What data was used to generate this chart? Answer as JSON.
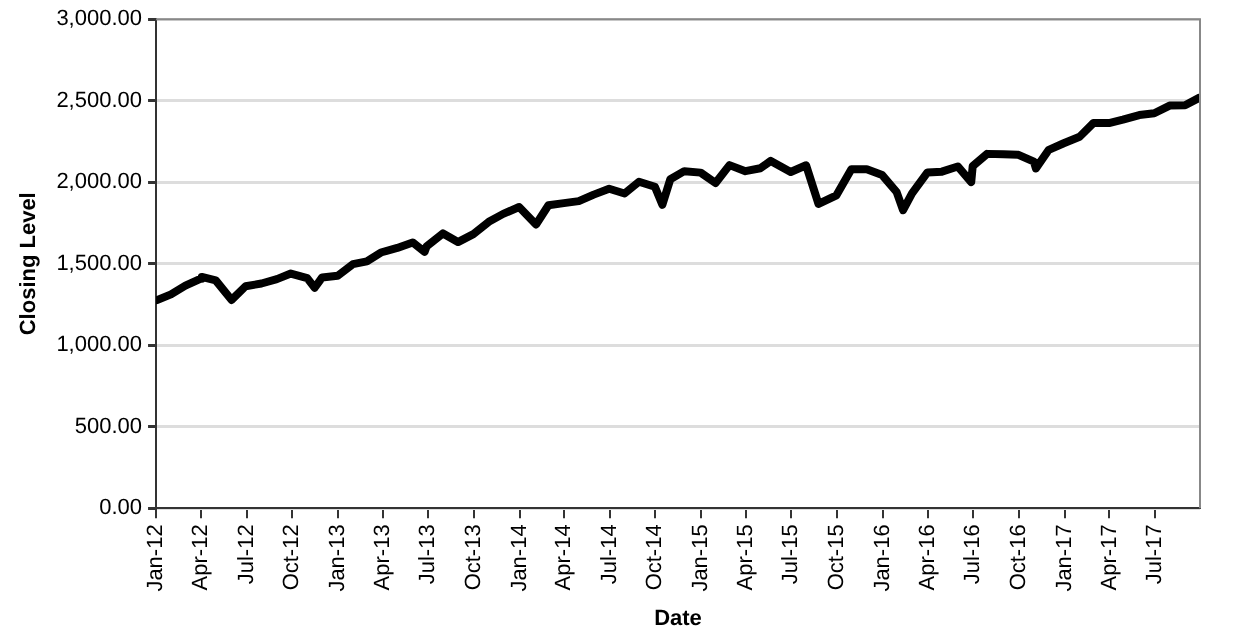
{
  "chart_data": {
    "type": "line",
    "xlabel": "Date",
    "ylabel": "Closing Level",
    "x": [
      "2012-01-03",
      "2012-01-31",
      "2012-02-29",
      "2012-03-30",
      "2012-04-02",
      "2012-04-30",
      "2012-06-01",
      "2012-06-29",
      "2012-07-31",
      "2012-08-31",
      "2012-09-28",
      "2012-10-31",
      "2012-11-15",
      "2012-11-30",
      "2012-12-31",
      "2013-01-31",
      "2013-02-28",
      "2013-03-28",
      "2013-04-30",
      "2013-05-31",
      "2013-06-24",
      "2013-06-28",
      "2013-07-31",
      "2013-08-30",
      "2013-09-30",
      "2013-10-31",
      "2013-11-29",
      "2013-12-31",
      "2014-02-03",
      "2014-02-28",
      "2014-03-31",
      "2014-04-30",
      "2014-05-30",
      "2014-06-30",
      "2014-07-31",
      "2014-08-29",
      "2014-09-30",
      "2014-10-15",
      "2014-10-31",
      "2014-11-28",
      "2014-12-31",
      "2015-01-30",
      "2015-02-27",
      "2015-03-31",
      "2015-04-30",
      "2015-05-21",
      "2015-06-30",
      "2015-07-31",
      "2015-08-25",
      "2015-09-30",
      "2015-10-30",
      "2015-11-30",
      "2015-12-31",
      "2016-01-29",
      "2016-02-11",
      "2016-02-29",
      "2016-03-31",
      "2016-04-29",
      "2016-05-31",
      "2016-06-27",
      "2016-06-30",
      "2016-07-29",
      "2016-08-31",
      "2016-09-30",
      "2016-10-31",
      "2016-11-04",
      "2016-11-30",
      "2016-12-30",
      "2017-01-31",
      "2017-02-28",
      "2017-03-31",
      "2017-04-28",
      "2017-05-31",
      "2017-06-30",
      "2017-07-31",
      "2017-08-31",
      "2017-09-29"
    ],
    "series": [
      {
        "color": "#000000",
        "values": [
          1277,
          1312,
          1366,
          1408,
          1419,
          1398,
          1278,
          1362,
          1379,
          1406,
          1440,
          1412,
          1353,
          1416,
          1426,
          1498,
          1515,
          1569,
          1597,
          1631,
          1573,
          1606,
          1686,
          1633,
          1682,
          1757,
          1806,
          1848,
          1741,
          1859,
          1872,
          1884,
          1924,
          1960,
          1931,
          2003,
          1972,
          1862,
          2018,
          2068,
          2059,
          1995,
          2105,
          2068,
          2086,
          2131,
          2063,
          2104,
          1867,
          1920,
          2079,
          2080,
          2044,
          1940,
          1829,
          1932,
          2060,
          2065,
          2097,
          2001,
          2099,
          2174,
          2171,
          2168,
          2126,
          2085,
          2199,
          2239,
          2279,
          2364,
          2363,
          2384,
          2412,
          2423,
          2470,
          2472,
          2519
        ]
      }
    ],
    "xlim": [
      "2012-01-01",
      "2017-09-30"
    ],
    "xticks": [
      {
        "value": "2012-01",
        "label": "Jan-12"
      },
      {
        "value": "2012-04",
        "label": "Apr-12"
      },
      {
        "value": "2012-07",
        "label": "Jul-12"
      },
      {
        "value": "2012-10",
        "label": "Oct-12"
      },
      {
        "value": "2013-01",
        "label": "Jan-13"
      },
      {
        "value": "2013-04",
        "label": "Apr-13"
      },
      {
        "value": "2013-07",
        "label": "Jul-13"
      },
      {
        "value": "2013-10",
        "label": "Oct-13"
      },
      {
        "value": "2014-01",
        "label": "Jan-14"
      },
      {
        "value": "2014-04",
        "label": "Apr-14"
      },
      {
        "value": "2014-07",
        "label": "Jul-14"
      },
      {
        "value": "2014-10",
        "label": "Oct-14"
      },
      {
        "value": "2015-01",
        "label": "Jan-15"
      },
      {
        "value": "2015-04",
        "label": "Apr-15"
      },
      {
        "value": "2015-07",
        "label": "Jul-15"
      },
      {
        "value": "2015-10",
        "label": "Oct-15"
      },
      {
        "value": "2016-01",
        "label": "Jan-16"
      },
      {
        "value": "2016-04",
        "label": "Apr-16"
      },
      {
        "value": "2016-07",
        "label": "Jul-16"
      },
      {
        "value": "2016-10",
        "label": "Oct-16"
      },
      {
        "value": "2017-01",
        "label": "Jan-17"
      },
      {
        "value": "2017-04",
        "label": "Apr-17"
      },
      {
        "value": "2017-07",
        "label": "Jul-17"
      }
    ],
    "ylim": [
      0,
      3000
    ],
    "yticks": [
      {
        "value": 0,
        "label": "0.00"
      },
      {
        "value": 500,
        "label": "500.00"
      },
      {
        "value": 1000,
        "label": "1,000.00"
      },
      {
        "value": 1500,
        "label": "1,500.00"
      },
      {
        "value": 2000,
        "label": "2,000.00"
      },
      {
        "value": 2500,
        "label": "2,500.00"
      },
      {
        "value": 3000,
        "label": "3,000.00"
      }
    ],
    "grid": "y",
    "legend": false,
    "marker": "none",
    "line_style": "solid"
  }
}
